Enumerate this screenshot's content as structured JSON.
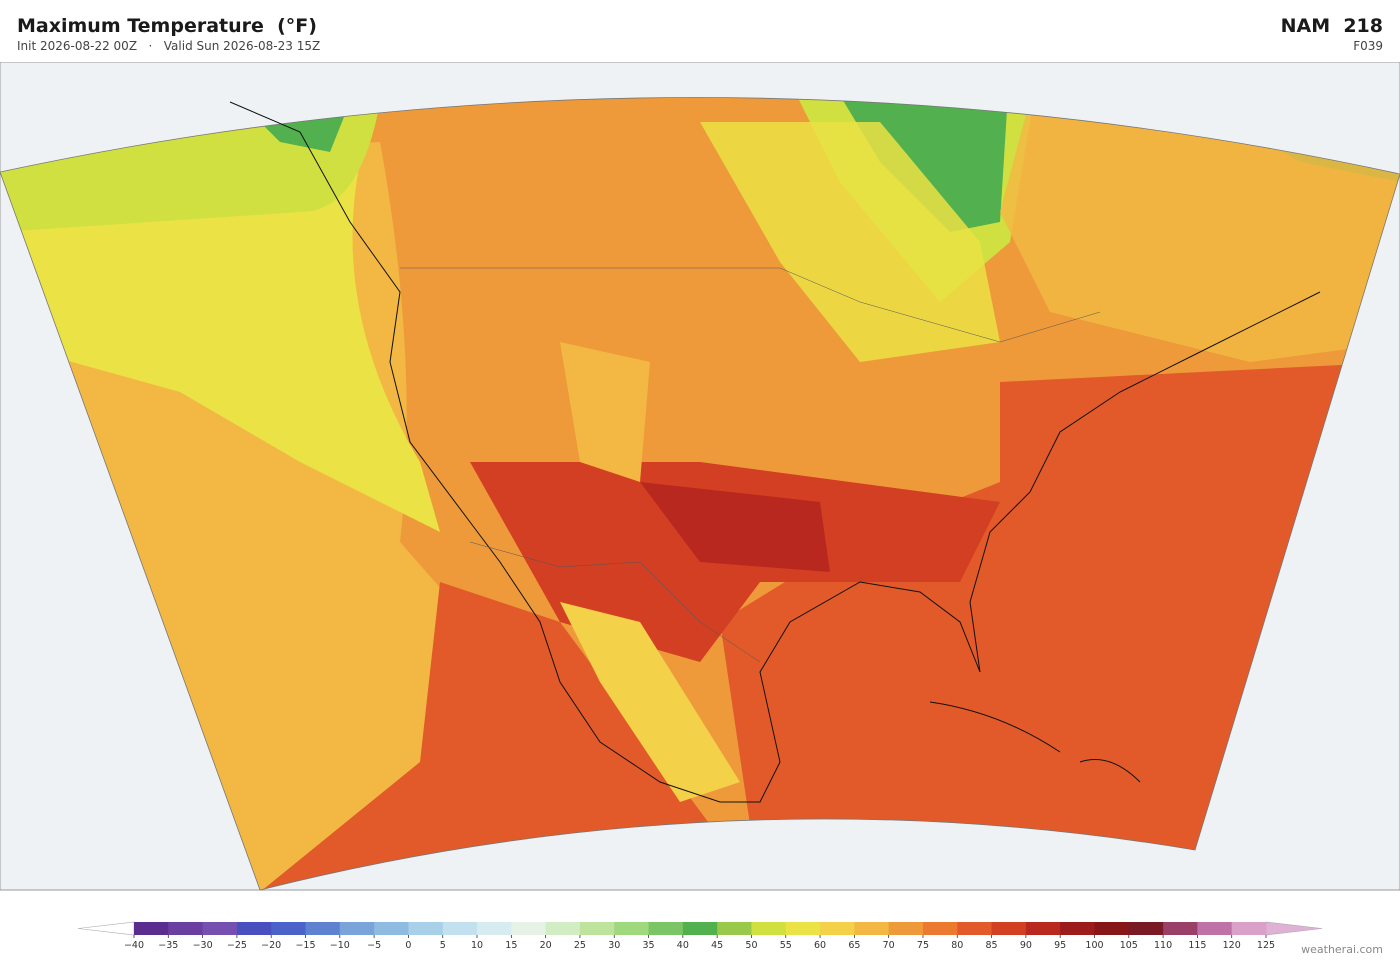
{
  "header": {
    "title": "Maximum Temperature  (°F)",
    "init": "Init 2026-08-22 00Z",
    "separator": "·",
    "valid": "Valid Sun 2026-08-23 15Z",
    "model": "NAM  218",
    "forecast_hour": "F039"
  },
  "colorbar": {
    "ticks": [
      {
        "value": -40,
        "label": "−40"
      },
      {
        "value": -35,
        "label": "−35"
      },
      {
        "value": -30,
        "label": "−30"
      },
      {
        "value": -25,
        "label": "−25"
      },
      {
        "value": -20,
        "label": "−20"
      },
      {
        "value": -15,
        "label": "−15"
      },
      {
        "value": -10,
        "label": "−10"
      },
      {
        "value": -5,
        "label": "−5"
      },
      0,
      5,
      10,
      15,
      20,
      25,
      30,
      35,
      40,
      45,
      50,
      55,
      60,
      65,
      70,
      75,
      80,
      85,
      90,
      95,
      100,
      105,
      110,
      115,
      120,
      125
    ],
    "colors": [
      "#5a2d8f",
      "#6b3fa0",
      "#7550b0",
      "#4a4fbf",
      "#4b62c8",
      "#5f82d0",
      "#7aa3da",
      "#8fbbe0",
      "#a8d0e8",
      "#c2e0ee",
      "#d6ecf0",
      "#e6f2e6",
      "#d2ecc4",
      "#bde39c",
      "#a0d87e",
      "#7cc567",
      "#52b04e",
      "#98c94a",
      "#cfe040",
      "#ebe245",
      "#f3d24a",
      "#f2b843",
      "#ee9a3a",
      "#eb7a30",
      "#e25a2a",
      "#d33f22",
      "#b8281e",
      "#9c1b1b",
      "#861618",
      "#7a1a24",
      "#9a3f68",
      "#bf72a8",
      "#d9a0c8"
    ],
    "under_color": "#ffffff",
    "over_color": "#e0b0d6"
  },
  "footer": {
    "credit": "weatherai.com"
  }
}
